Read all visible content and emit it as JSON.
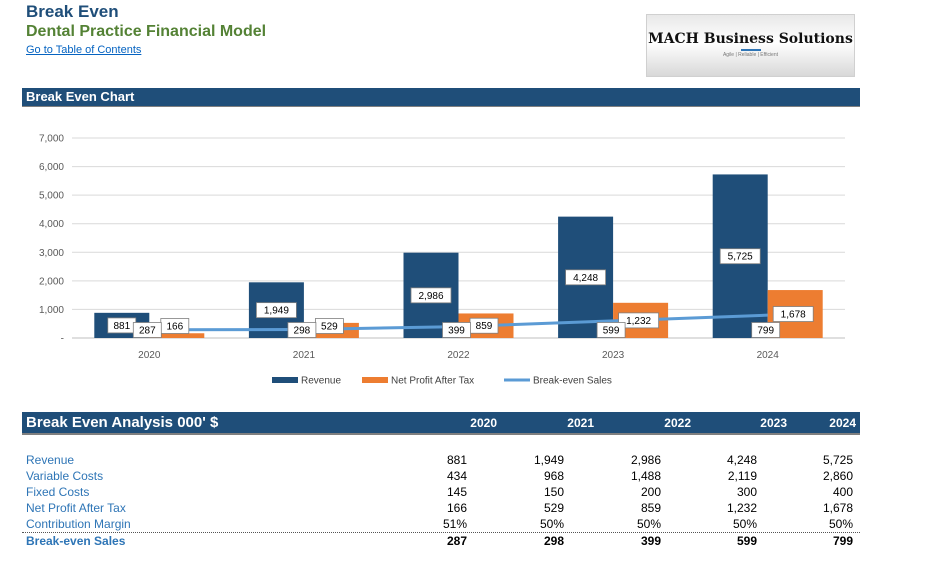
{
  "header": {
    "title": "Break Even",
    "subtitle": "Dental Practice Financial Model",
    "toc_link": "Go to Table of Contents"
  },
  "logo": {
    "name": "MACH Business Solutions",
    "tagline": "Agile | Reliable | Efficient"
  },
  "chart_section": {
    "title": "Break Even Chart"
  },
  "chart_data": {
    "type": "bar",
    "categories": [
      "2020",
      "2021",
      "2022",
      "2023",
      "2024"
    ],
    "series": [
      {
        "name": "Revenue",
        "type": "bar",
        "color": "#1f4e79",
        "values": [
          881,
          1949,
          2986,
          4248,
          5725
        ],
        "labels": [
          "881",
          "1,949",
          "2,986",
          "4,248",
          "5,725"
        ]
      },
      {
        "name": "Net Profit After Tax",
        "type": "bar",
        "color": "#ed7d31",
        "values": [
          166,
          529,
          859,
          1232,
          1678
        ],
        "labels": [
          "166",
          "529",
          "859",
          "1,232",
          "1,678"
        ]
      },
      {
        "name": "Break-even Sales",
        "type": "line",
        "color": "#5b9bd5",
        "values": [
          287,
          298,
          399,
          599,
          799
        ],
        "labels": [
          "287",
          "298",
          "399",
          "599",
          "799"
        ]
      }
    ],
    "ylim": [
      0,
      7000
    ],
    "yticks": [
      0,
      1000,
      2000,
      3000,
      4000,
      5000,
      6000,
      7000
    ],
    "ytick_labels": [
      "-",
      "1,000",
      "2,000",
      "3,000",
      "4,000",
      "5,000",
      "6,000",
      "7,000"
    ],
    "grid": true,
    "legend_position": "bottom"
  },
  "table": {
    "title": "Break Even Analysis 000' $",
    "years": [
      "2020",
      "2021",
      "2022",
      "2023",
      "2024"
    ],
    "rows": [
      {
        "label": "Revenue",
        "values": [
          "881",
          "1,949",
          "2,986",
          "4,248",
          "5,725"
        ]
      },
      {
        "label": "Variable Costs",
        "values": [
          "434",
          "968",
          "1,488",
          "2,119",
          "2,860"
        ]
      },
      {
        "label": "Fixed Costs",
        "values": [
          "145",
          "150",
          "200",
          "300",
          "400"
        ]
      },
      {
        "label": "Net Profit After Tax",
        "values": [
          "166",
          "529",
          "859",
          "1,232",
          "1,678"
        ]
      },
      {
        "label": "Contribution Margin",
        "values": [
          "51%",
          "50%",
          "50%",
          "50%",
          "50%"
        ]
      }
    ],
    "total": {
      "label": "Break-even Sales",
      "values": [
        "287",
        "298",
        "399",
        "599",
        "799"
      ]
    }
  }
}
